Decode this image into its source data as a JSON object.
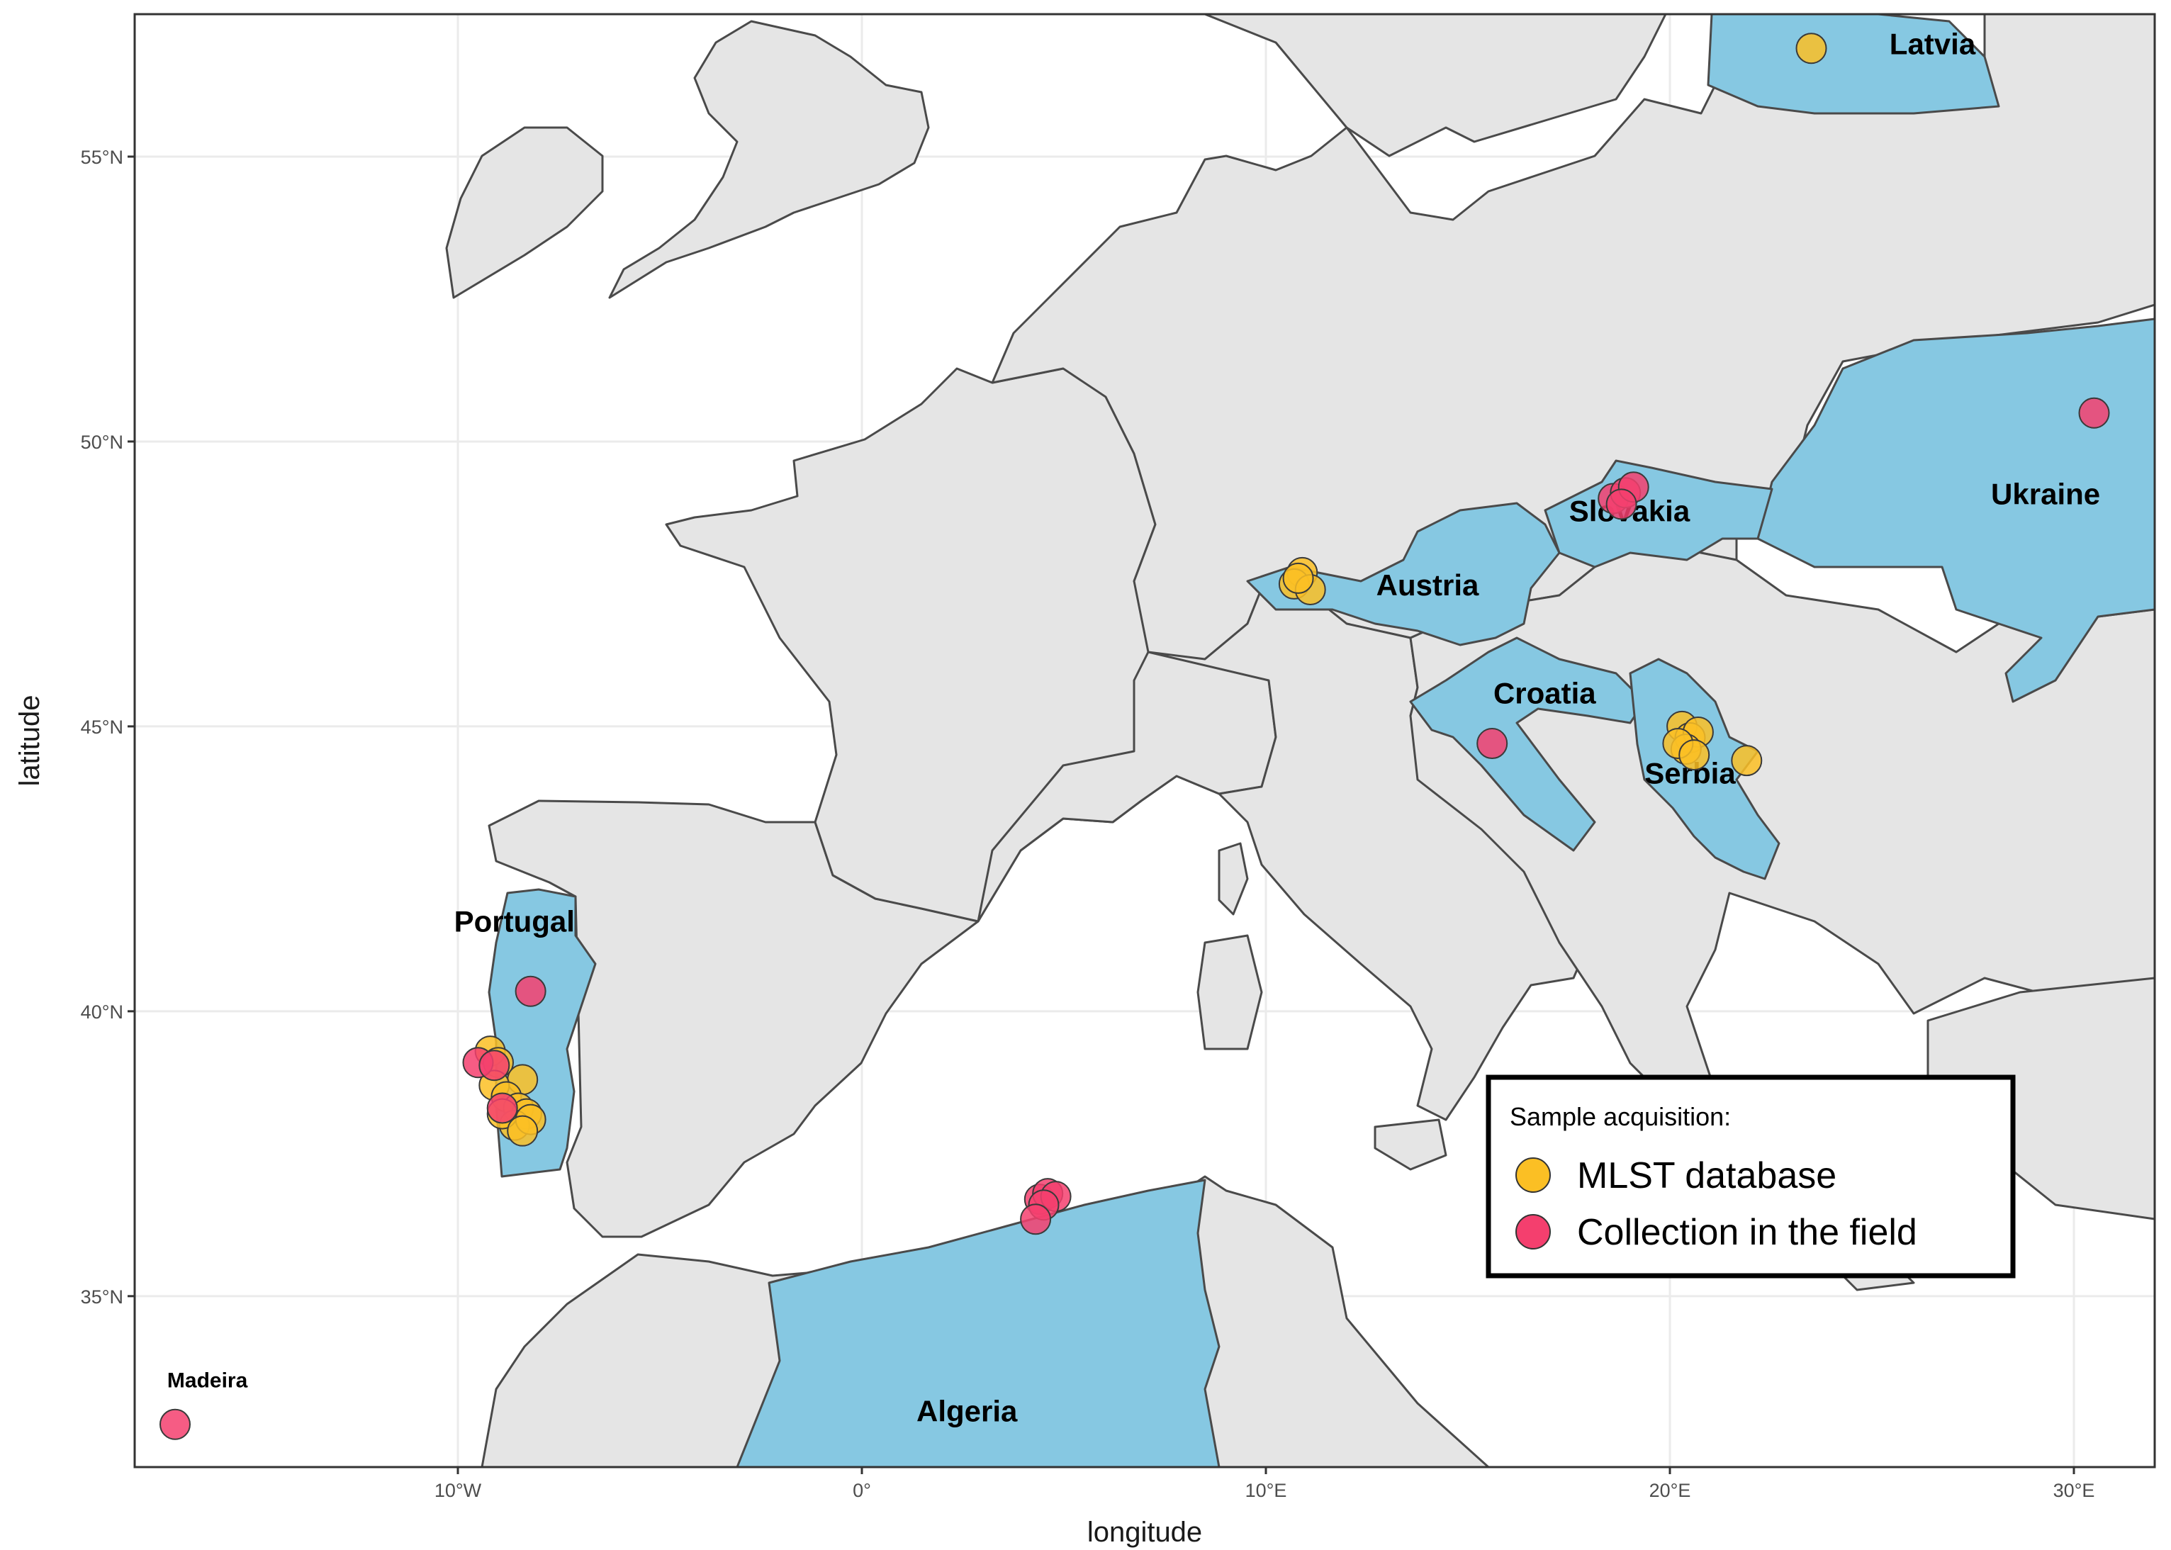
{
  "axes": {
    "x_title": "longitude",
    "y_title": "latitude",
    "x_ticks": [
      {
        "value": -10,
        "label": "10°W"
      },
      {
        "value": 0,
        "label": "0°"
      },
      {
        "value": 10,
        "label": "10°E"
      },
      {
        "value": 20,
        "label": "20°E"
      },
      {
        "value": 30,
        "label": "30°E"
      }
    ],
    "y_ticks": [
      {
        "value": 35,
        "label": "35°N"
      },
      {
        "value": 40,
        "label": "40°N"
      },
      {
        "value": 45,
        "label": "45°N"
      },
      {
        "value": 50,
        "label": "50°N"
      },
      {
        "value": 55,
        "label": "55°N"
      }
    ],
    "xlim": [
      -18,
      32
    ],
    "ylim": [
      32,
      57.5
    ]
  },
  "colors": {
    "land": "#e5e5e5",
    "highlight": "#86c8e2",
    "mlst": "#fbbf24",
    "field": "#f43f6e",
    "border": "#4a4a4a"
  },
  "highlighted_countries": [
    {
      "name": "Latvia",
      "label_lon": 26.5,
      "label_lat": 56.8
    },
    {
      "name": "Ukraine",
      "label_lon": 29.3,
      "label_lat": 48.9
    },
    {
      "name": "Slovakia",
      "label_lon": 19.0,
      "label_lat": 48.6
    },
    {
      "name": "Austria",
      "label_lon": 14.0,
      "label_lat": 47.3
    },
    {
      "name": "Croatia",
      "label_lon": 16.9,
      "label_lat": 45.4
    },
    {
      "name": "Serbia",
      "label_lon": 20.5,
      "label_lat": 44.0
    },
    {
      "name": "Portugal",
      "label_lon": -8.6,
      "label_lat": 41.4
    },
    {
      "name": "Algeria",
      "label_lon": 2.6,
      "label_lat": 32.8
    },
    {
      "name": "Madeira",
      "label_lon": -16.2,
      "label_lat": 33.4
    }
  ],
  "legend": {
    "title": "Sample acquisition:",
    "items": [
      {
        "label": "MLST database",
        "color_key": "mlst"
      },
      {
        "label": "Collection in the field",
        "color_key": "field"
      }
    ]
  },
  "points": {
    "mlst": [
      [
        23.5,
        56.9
      ],
      [
        10.9,
        47.7
      ],
      [
        10.7,
        47.5
      ],
      [
        11.1,
        47.4
      ],
      [
        10.8,
        47.6
      ],
      [
        20.3,
        45.0
      ],
      [
        20.5,
        44.8
      ],
      [
        20.7,
        44.9
      ],
      [
        20.4,
        44.6
      ],
      [
        20.2,
        44.7
      ],
      [
        21.9,
        44.4
      ],
      [
        20.6,
        44.5
      ],
      [
        -9.2,
        39.3
      ],
      [
        -9.0,
        39.1
      ],
      [
        -8.4,
        38.8
      ],
      [
        -9.1,
        38.7
      ],
      [
        -8.8,
        38.5
      ],
      [
        -8.5,
        38.3
      ],
      [
        -8.3,
        38.2
      ],
      [
        -8.6,
        38.0
      ],
      [
        -8.9,
        38.2
      ],
      [
        -8.2,
        38.1
      ],
      [
        -8.4,
        37.9
      ]
    ],
    "field": [
      [
        30.5,
        50.5
      ],
      [
        18.6,
        49.0
      ],
      [
        18.9,
        49.1
      ],
      [
        19.1,
        49.2
      ],
      [
        18.8,
        48.9
      ],
      [
        15.6,
        44.7
      ],
      [
        -9.5,
        39.1
      ],
      [
        -9.1,
        39.05
      ],
      [
        -8.9,
        38.3
      ],
      [
        -8.2,
        40.35
      ],
      [
        4.4,
        36.7
      ],
      [
        4.6,
        36.8
      ],
      [
        4.8,
        36.75
      ],
      [
        4.5,
        36.6
      ],
      [
        4.3,
        36.35
      ],
      [
        -17.0,
        32.75
      ]
    ]
  }
}
